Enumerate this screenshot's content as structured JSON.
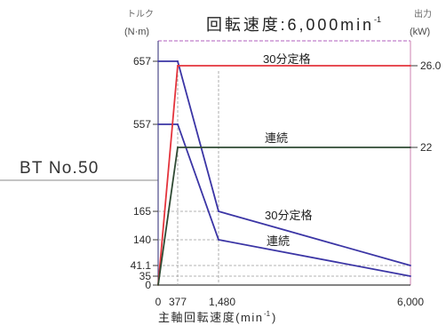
{
  "spindle": {
    "label": "BT No.50"
  },
  "chart_data": {
    "type": "line",
    "title": "回転速度:6,000min",
    "title_sup": "-1",
    "xlabel": "主軸回転速度(min",
    "xlabel_sup": "-1",
    "xlabel_close": ")",
    "ylabel_left": [
      "トルク",
      "(N·m)"
    ],
    "ylabel_right": [
      "出力",
      "(kW)"
    ],
    "xlim": [
      0,
      6000
    ],
    "ylim_left": [
      0,
      657
    ],
    "ylim_right": [
      0,
      26.0
    ],
    "grid": true,
    "legend": "none",
    "x_ticks": [
      {
        "value": 0,
        "label": "0"
      },
      {
        "value": 377,
        "label": "377"
      },
      {
        "value": 1480,
        "label": "1,480"
      },
      {
        "value": 6000,
        "label": "6,000"
      }
    ],
    "y_left_ticks": [
      {
        "value": 657,
        "label": "657"
      },
      {
        "value": 557,
        "label": "557"
      },
      {
        "value": 165,
        "label": "165"
      },
      {
        "value": 140,
        "label": "140"
      },
      {
        "value": 41.1,
        "label": "41.1"
      },
      {
        "value": 35,
        "label": "35"
      },
      {
        "value": 0,
        "label": "0"
      }
    ],
    "y_right_ticks": [
      {
        "value": 26.0,
        "label": "26.0"
      },
      {
        "value": 22,
        "label": "22"
      }
    ],
    "series": [
      {
        "name": "30分定格",
        "axis": "left",
        "color": "#3b35a5",
        "points": [
          [
            0,
            657
          ],
          [
            377,
            657
          ],
          [
            1480,
            165
          ],
          [
            6000,
            41.1
          ]
        ]
      },
      {
        "name": "連続",
        "axis": "left",
        "color": "#3b35a5",
        "points": [
          [
            0,
            557
          ],
          [
            377,
            557
          ],
          [
            1480,
            140
          ],
          [
            6000,
            35
          ]
        ]
      },
      {
        "name": "30分定格",
        "axis": "right",
        "color": "#e4343c",
        "points": [
          [
            0,
            0
          ],
          [
            377,
            26.0
          ],
          [
            6000,
            26.0
          ]
        ]
      },
      {
        "name": "連続",
        "axis": "right",
        "color": "#2f4a33",
        "points": [
          [
            0,
            0
          ],
          [
            377,
            22
          ],
          [
            6000,
            22
          ]
        ]
      }
    ]
  }
}
